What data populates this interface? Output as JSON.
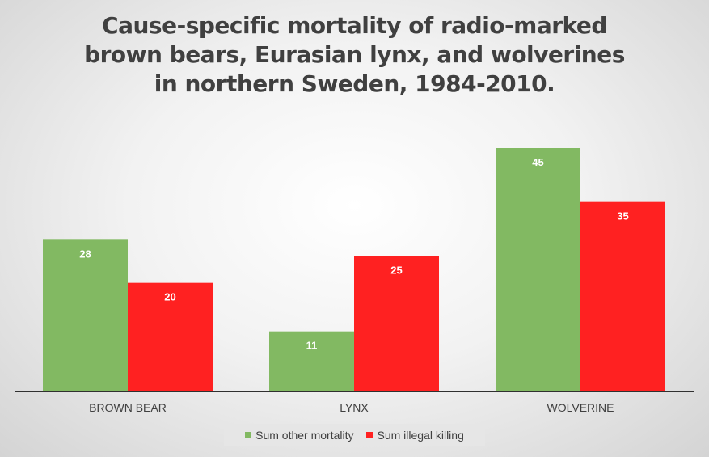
{
  "chart_data": {
    "type": "bar",
    "title": "Cause-specific mortality of radio-marked brown bears, Eurasian lynx, and wolverines in northern Sweden, 1984-2010.",
    "categories": [
      "BROWN BEAR",
      "LYNX",
      "WOLVERINE"
    ],
    "series": [
      {
        "name": "Sum other mortality",
        "values": [
          28,
          11,
          45
        ],
        "color": "#82b962"
      },
      {
        "name": "Sum illegal killing",
        "values": [
          20,
          25,
          35
        ],
        "color": "#ff2121"
      }
    ],
    "ylim": [
      0,
      50
    ],
    "grid": false,
    "legend_position": "bottom",
    "data_labels": true
  }
}
